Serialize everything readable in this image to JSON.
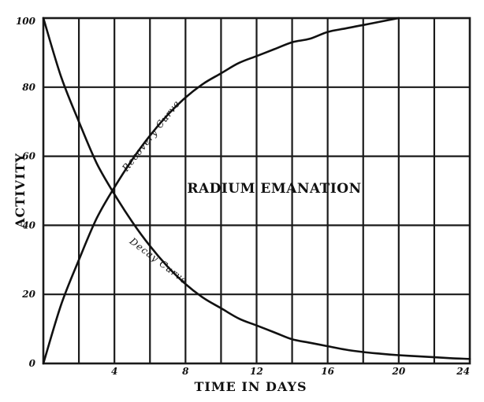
{
  "chart_data": {
    "type": "line",
    "title": "",
    "annotation": "RADIUM EMANATION",
    "xlabel": "TIME IN DAYS",
    "ylabel": "ACTIVITY",
    "xlim": [
      0,
      24
    ],
    "ylim": [
      0,
      100
    ],
    "x_ticks": [
      4,
      8,
      12,
      16,
      20,
      24
    ],
    "x_tick_labels": [
      "4",
      "8",
      "12",
      "16",
      "20",
      "24"
    ],
    "y_ticks": [
      0,
      20,
      40,
      60,
      80,
      100
    ],
    "y_tick_labels": [
      "0",
      "20",
      "40",
      "60",
      "80",
      "100"
    ],
    "grid": true,
    "series": [
      {
        "name": "Recovery Curve",
        "x": [
          0,
          1,
          2,
          3,
          4,
          5,
          6,
          7,
          8,
          9,
          10,
          11,
          12,
          13,
          14,
          15,
          16,
          17,
          18,
          19,
          20
        ],
        "y": [
          0,
          17,
          30,
          42,
          51,
          59,
          66,
          72,
          77,
          81,
          84,
          87,
          89,
          91,
          93,
          94,
          96,
          97,
          98,
          99,
          100
        ]
      },
      {
        "name": "Decay Curve",
        "x": [
          0,
          1,
          2,
          3,
          4,
          5,
          6,
          7,
          8,
          9,
          10,
          11,
          12,
          13,
          14,
          15,
          16,
          17,
          18,
          19,
          20,
          21,
          22,
          23,
          24
        ],
        "y": [
          100,
          83,
          70,
          58,
          49,
          41,
          34,
          28,
          23,
          19,
          16,
          13,
          11,
          9,
          7,
          6,
          5,
          4,
          3.3,
          2.8,
          2.4,
          2.1,
          1.8,
          1.5,
          1.3
        ]
      }
    ]
  }
}
